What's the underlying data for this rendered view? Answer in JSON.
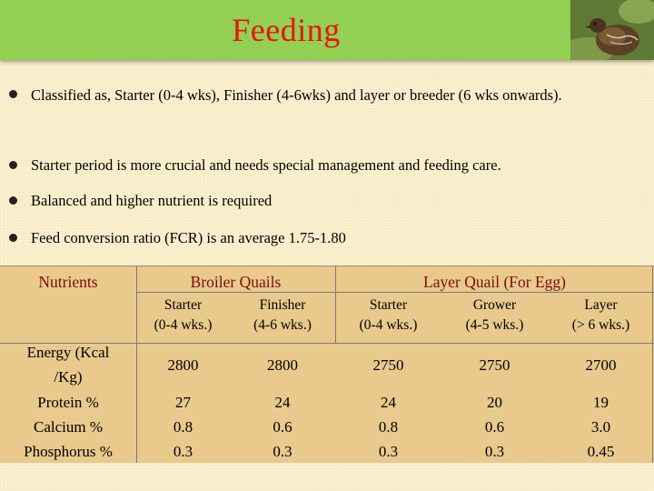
{
  "title": "Feeding",
  "bullets": [
    "Classified as, Starter (0-4 wks), Finisher (4-6wks) and layer or breeder (6 wks onwards).",
    "Starter period is more crucial and needs special management and feeding care.",
    "Balanced and higher nutrient is required",
    "Feed conversion ratio (FCR) is an average 1.75-1.80"
  ],
  "table": {
    "nutrients_header": "Nutrients",
    "groups": [
      "Broiler Quails",
      "Layer Quail (For Egg)"
    ],
    "subheaders": [
      {
        "line1": "Starter",
        "line2": "(0-4 wks.)"
      },
      {
        "line1": "Finisher",
        "line2": "(4-6 wks.)"
      },
      {
        "line1": "Starter",
        "line2": "(0-4 wks.)"
      },
      {
        "line1": "Grower",
        "line2": "(4-5 wks.)"
      },
      {
        "line1": "Layer",
        "line2": "(> 6 wks.)"
      }
    ],
    "energy_label_1": "Energy (Kcal",
    "energy_label_2": "/Kg)",
    "energy_values": [
      "2800",
      "2800",
      "2750",
      "2750",
      "2700"
    ],
    "rows": [
      {
        "label": "Protein %",
        "values": [
          "27",
          "24",
          "24",
          "20",
          "19"
        ]
      },
      {
        "label": "Calcium %",
        "values": [
          "0.8",
          "0.6",
          "0.8",
          "0.6",
          "3.0"
        ]
      },
      {
        "label": "Phosphorus %",
        "values": [
          "0.3",
          "0.3",
          "0.3",
          "0.3",
          "0.45"
        ]
      }
    ]
  }
}
